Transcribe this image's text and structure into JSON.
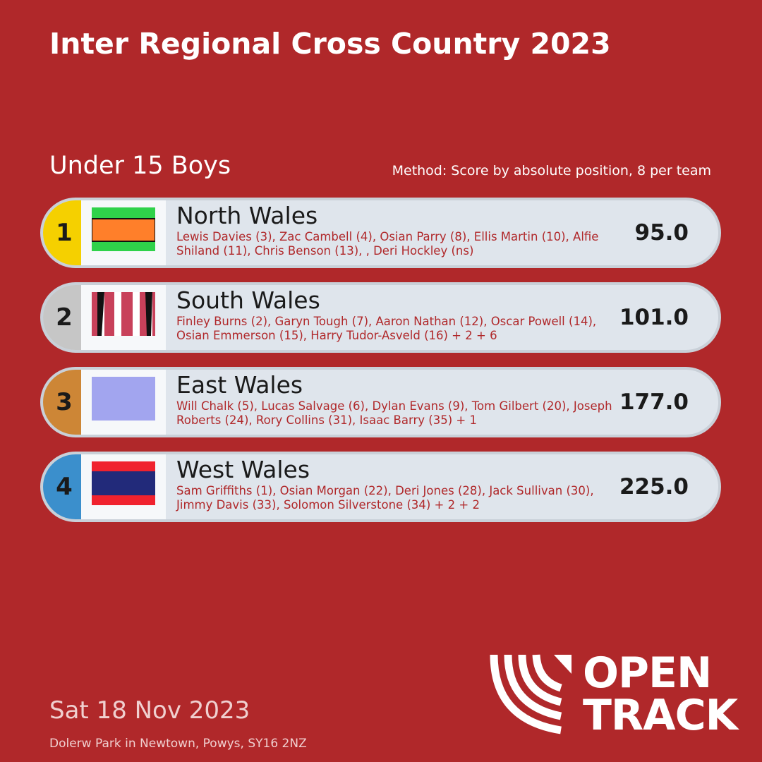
{
  "header": {
    "title": "Inter Regional Cross Country 2023"
  },
  "event": {
    "category": "Under 15 Boys",
    "method": "Method: Score by absolute position, 8 per team"
  },
  "teams": [
    {
      "rank": 1,
      "name": "North Wales",
      "members": "Lewis Davies (3), Zac Cambell (4), Osian Parry (8), Ellis Martin (10), Alfie Shiland (11), Chris Benson (13), , Deri Hockley (ns)",
      "score": "95.0"
    },
    {
      "rank": 2,
      "name": "South Wales",
      "members": "Finley Burns (2), Garyn Tough (7), Aaron Nathan (12), Oscar Powell (14), Osian Emmerson (15), Harry Tudor-Asveld (16) + 2 + 6",
      "score": "101.0"
    },
    {
      "rank": 3,
      "name": "East Wales",
      "members": "Will Chalk (5), Lucas Salvage (6), Dylan Evans (9), Tom Gilbert (20), Joseph Roberts (24), Rory Collins (31), Isaac Barry (35) + 1",
      "score": "177.0"
    },
    {
      "rank": 4,
      "name": "West Wales",
      "members": "Sam Griffiths (1), Osian Morgan (22), Deri Jones (28), Jack Sullivan (30), Jimmy Davis (33), Solomon Silverstone (34) + 2 + 2",
      "score": "225.0"
    }
  ],
  "footer": {
    "date": "Sat 18 Nov 2023",
    "venue": "Dolerw Park in Newtown, Powys, SY16 2NZ"
  },
  "logo": {
    "line1": "OPEN",
    "line2": "TRACK"
  }
}
